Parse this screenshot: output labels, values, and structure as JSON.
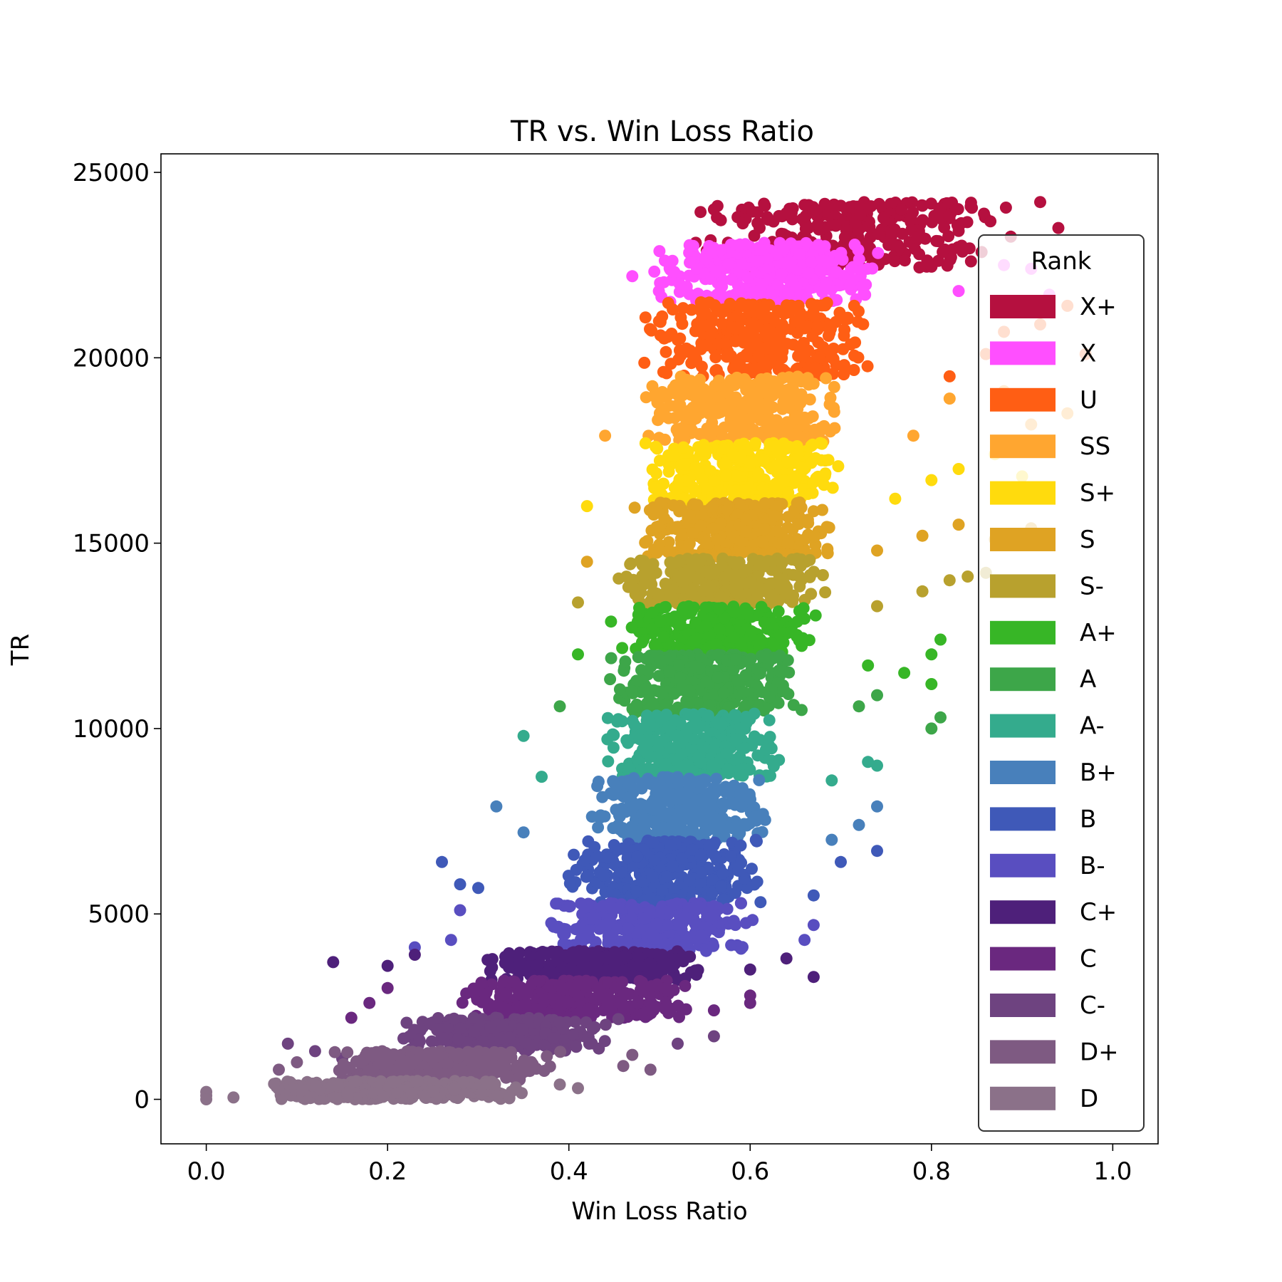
{
  "chart_data": {
    "type": "scatter",
    "title": "TR vs. Win Loss Ratio",
    "xlabel": "Win Loss Ratio",
    "ylabel": "TR",
    "xlim": [
      -0.05,
      1.05
    ],
    "ylim": [
      -1200,
      25500
    ],
    "xticks": [
      "0.0",
      "0.2",
      "0.4",
      "0.6",
      "0.8",
      "1.0"
    ],
    "yticks": [
      "0",
      "5000",
      "10000",
      "15000",
      "20000",
      "25000"
    ],
    "grid": false,
    "legend": {
      "title": "Rank",
      "placement": "right"
    },
    "series": [
      {
        "name": "X+",
        "color": "#b5103f",
        "tr": [
          22400,
          24200
        ],
        "wl": [
          0.5,
          0.93
        ],
        "extras": [
          [
            0.56,
            24000
          ],
          [
            0.64,
            23900
          ],
          [
            0.7,
            24100
          ],
          [
            0.79,
            24100
          ],
          [
            0.92,
            24200
          ],
          [
            0.94,
            23500
          ],
          [
            0.54,
            23100
          ],
          [
            0.62,
            22600
          ]
        ]
      },
      {
        "name": "X",
        "color": "#ff4fff",
        "tr": [
          21500,
          23100
        ],
        "wl": [
          0.46,
          0.78
        ],
        "extras": [
          [
            0.47,
            22200
          ],
          [
            0.83,
            21800
          ],
          [
            0.88,
            22500
          ],
          [
            0.91,
            22400
          ],
          [
            0.93,
            21700
          ]
        ]
      },
      {
        "name": "U",
        "color": "#ff5e14",
        "tr": [
          19500,
          21500
        ],
        "wl": [
          0.45,
          0.76
        ],
        "extras": [
          [
            0.82,
            19500
          ],
          [
            0.86,
            20100
          ],
          [
            0.88,
            20700
          ],
          [
            0.92,
            20900
          ],
          [
            0.95,
            21400
          ],
          [
            0.97,
            20100
          ]
        ]
      },
      {
        "name": "SS",
        "color": "#ffa630",
        "tr": [
          17700,
          19500
        ],
        "wl": [
          0.45,
          0.73
        ],
        "extras": [
          [
            0.44,
            17900
          ],
          [
            0.78,
            17900
          ],
          [
            0.82,
            18900
          ],
          [
            0.88,
            19100
          ],
          [
            0.91,
            18200
          ],
          [
            0.95,
            18500
          ]
        ]
      },
      {
        "name": "S+",
        "color": "#ffdb0d",
        "tr": [
          16100,
          17700
        ],
        "wl": [
          0.45,
          0.73
        ],
        "extras": [
          [
            0.42,
            16000
          ],
          [
            0.76,
            16200
          ],
          [
            0.8,
            16700
          ],
          [
            0.83,
            17000
          ],
          [
            0.87,
            17400
          ],
          [
            0.9,
            16800
          ]
        ]
      },
      {
        "name": "S",
        "color": "#dfa323",
        "tr": [
          14600,
          16100
        ],
        "wl": [
          0.44,
          0.72
        ],
        "extras": [
          [
            0.42,
            14500
          ],
          [
            0.74,
            14800
          ],
          [
            0.79,
            15200
          ],
          [
            0.83,
            15500
          ],
          [
            0.87,
            15100
          ],
          [
            0.91,
            15400
          ]
        ]
      },
      {
        "name": "S-",
        "color": "#b8a12e",
        "tr": [
          13300,
          14600
        ],
        "wl": [
          0.43,
          0.71
        ],
        "extras": [
          [
            0.41,
            13400
          ],
          [
            0.74,
            13300
          ],
          [
            0.79,
            13700
          ],
          [
            0.82,
            14000
          ],
          [
            0.84,
            14100
          ],
          [
            0.86,
            14200
          ]
        ]
      },
      {
        "name": "A+",
        "color": "#37b626",
        "tr": [
          12000,
          13300
        ],
        "wl": [
          0.42,
          0.7
        ],
        "extras": [
          [
            0.41,
            12000
          ],
          [
            0.73,
            11700
          ],
          [
            0.77,
            11500
          ],
          [
            0.8,
            12000
          ],
          [
            0.81,
            12400
          ],
          [
            0.8,
            11200
          ]
        ]
      },
      {
        "name": "A",
        "color": "#3da649",
        "tr": [
          10400,
          12000
        ],
        "wl": [
          0.42,
          0.68
        ],
        "extras": [
          [
            0.39,
            10600
          ],
          [
            0.72,
            10600
          ],
          [
            0.74,
            10900
          ],
          [
            0.8,
            10000
          ],
          [
            0.81,
            10300
          ]
        ]
      },
      {
        "name": "A-",
        "color": "#34ab8d",
        "tr": [
          8700,
          10400
        ],
        "wl": [
          0.41,
          0.66
        ],
        "extras": [
          [
            0.35,
            9800
          ],
          [
            0.37,
            8700
          ],
          [
            0.69,
            8600
          ],
          [
            0.73,
            9100
          ],
          [
            0.74,
            9000
          ]
        ]
      },
      {
        "name": "B+",
        "color": "#4880bb",
        "tr": [
          7000,
          8700
        ],
        "wl": [
          0.39,
          0.65
        ],
        "extras": [
          [
            0.32,
            7900
          ],
          [
            0.35,
            7200
          ],
          [
            0.69,
            7000
          ],
          [
            0.72,
            7400
          ],
          [
            0.74,
            7900
          ]
        ]
      },
      {
        "name": "B",
        "color": "#3f59b8",
        "tr": [
          5300,
          7000
        ],
        "wl": [
          0.37,
          0.65
        ],
        "extras": [
          [
            0.26,
            6400
          ],
          [
            0.28,
            5800
          ],
          [
            0.3,
            5700
          ],
          [
            0.67,
            5500
          ],
          [
            0.7,
            6400
          ],
          [
            0.74,
            6700
          ]
        ]
      },
      {
        "name": "B-",
        "color": "#594ec0",
        "tr": [
          4000,
          5300
        ],
        "wl": [
          0.35,
          0.63
        ],
        "extras": [
          [
            0.27,
            4300
          ],
          [
            0.28,
            5100
          ],
          [
            0.23,
            4100
          ],
          [
            0.66,
            4300
          ],
          [
            0.67,
            4700
          ]
        ]
      },
      {
        "name": "C+",
        "color": "#4e207a",
        "tr": [
          3200,
          4000
        ],
        "wl": [
          0.28,
          0.58
        ],
        "extras": [
          [
            0.14,
            3700
          ],
          [
            0.2,
            3600
          ],
          [
            0.23,
            3900
          ],
          [
            0.64,
            3800
          ],
          [
            0.67,
            3300
          ],
          [
            0.6,
            3500
          ]
        ]
      },
      {
        "name": "C",
        "color": "#6a287f",
        "tr": [
          2200,
          3200
        ],
        "wl": [
          0.25,
          0.56
        ],
        "extras": [
          [
            0.16,
            2200
          ],
          [
            0.18,
            2600
          ],
          [
            0.2,
            3000
          ],
          [
            0.56,
            2400
          ],
          [
            0.6,
            2600
          ],
          [
            0.6,
            2800
          ]
        ]
      },
      {
        "name": "C-",
        "color": "#6e4380",
        "tr": [
          1300,
          2200
        ],
        "wl": [
          0.18,
          0.48
        ],
        "extras": [
          [
            0.09,
            1500
          ],
          [
            0.12,
            1300
          ],
          [
            0.15,
            1100
          ],
          [
            0.52,
            1500
          ],
          [
            0.56,
            1700
          ]
        ]
      },
      {
        "name": "D+",
        "color": "#7e5a82",
        "tr": [
          500,
          1300
        ],
        "wl": [
          0.1,
          0.42
        ],
        "extras": [
          [
            0.08,
            800
          ],
          [
            0.1,
            1000
          ],
          [
            0.46,
            900
          ],
          [
            0.49,
            800
          ],
          [
            0.47,
            1200
          ]
        ]
      },
      {
        "name": "D",
        "color": "#8b7189",
        "tr": [
          0,
          500
        ],
        "wl": [
          0.03,
          0.38
        ],
        "extras": [
          [
            0.0,
            100
          ],
          [
            0.0,
            200
          ],
          [
            0.0,
            0
          ],
          [
            0.03,
            50
          ],
          [
            0.39,
            400
          ],
          [
            0.41,
            300
          ]
        ]
      }
    ]
  }
}
